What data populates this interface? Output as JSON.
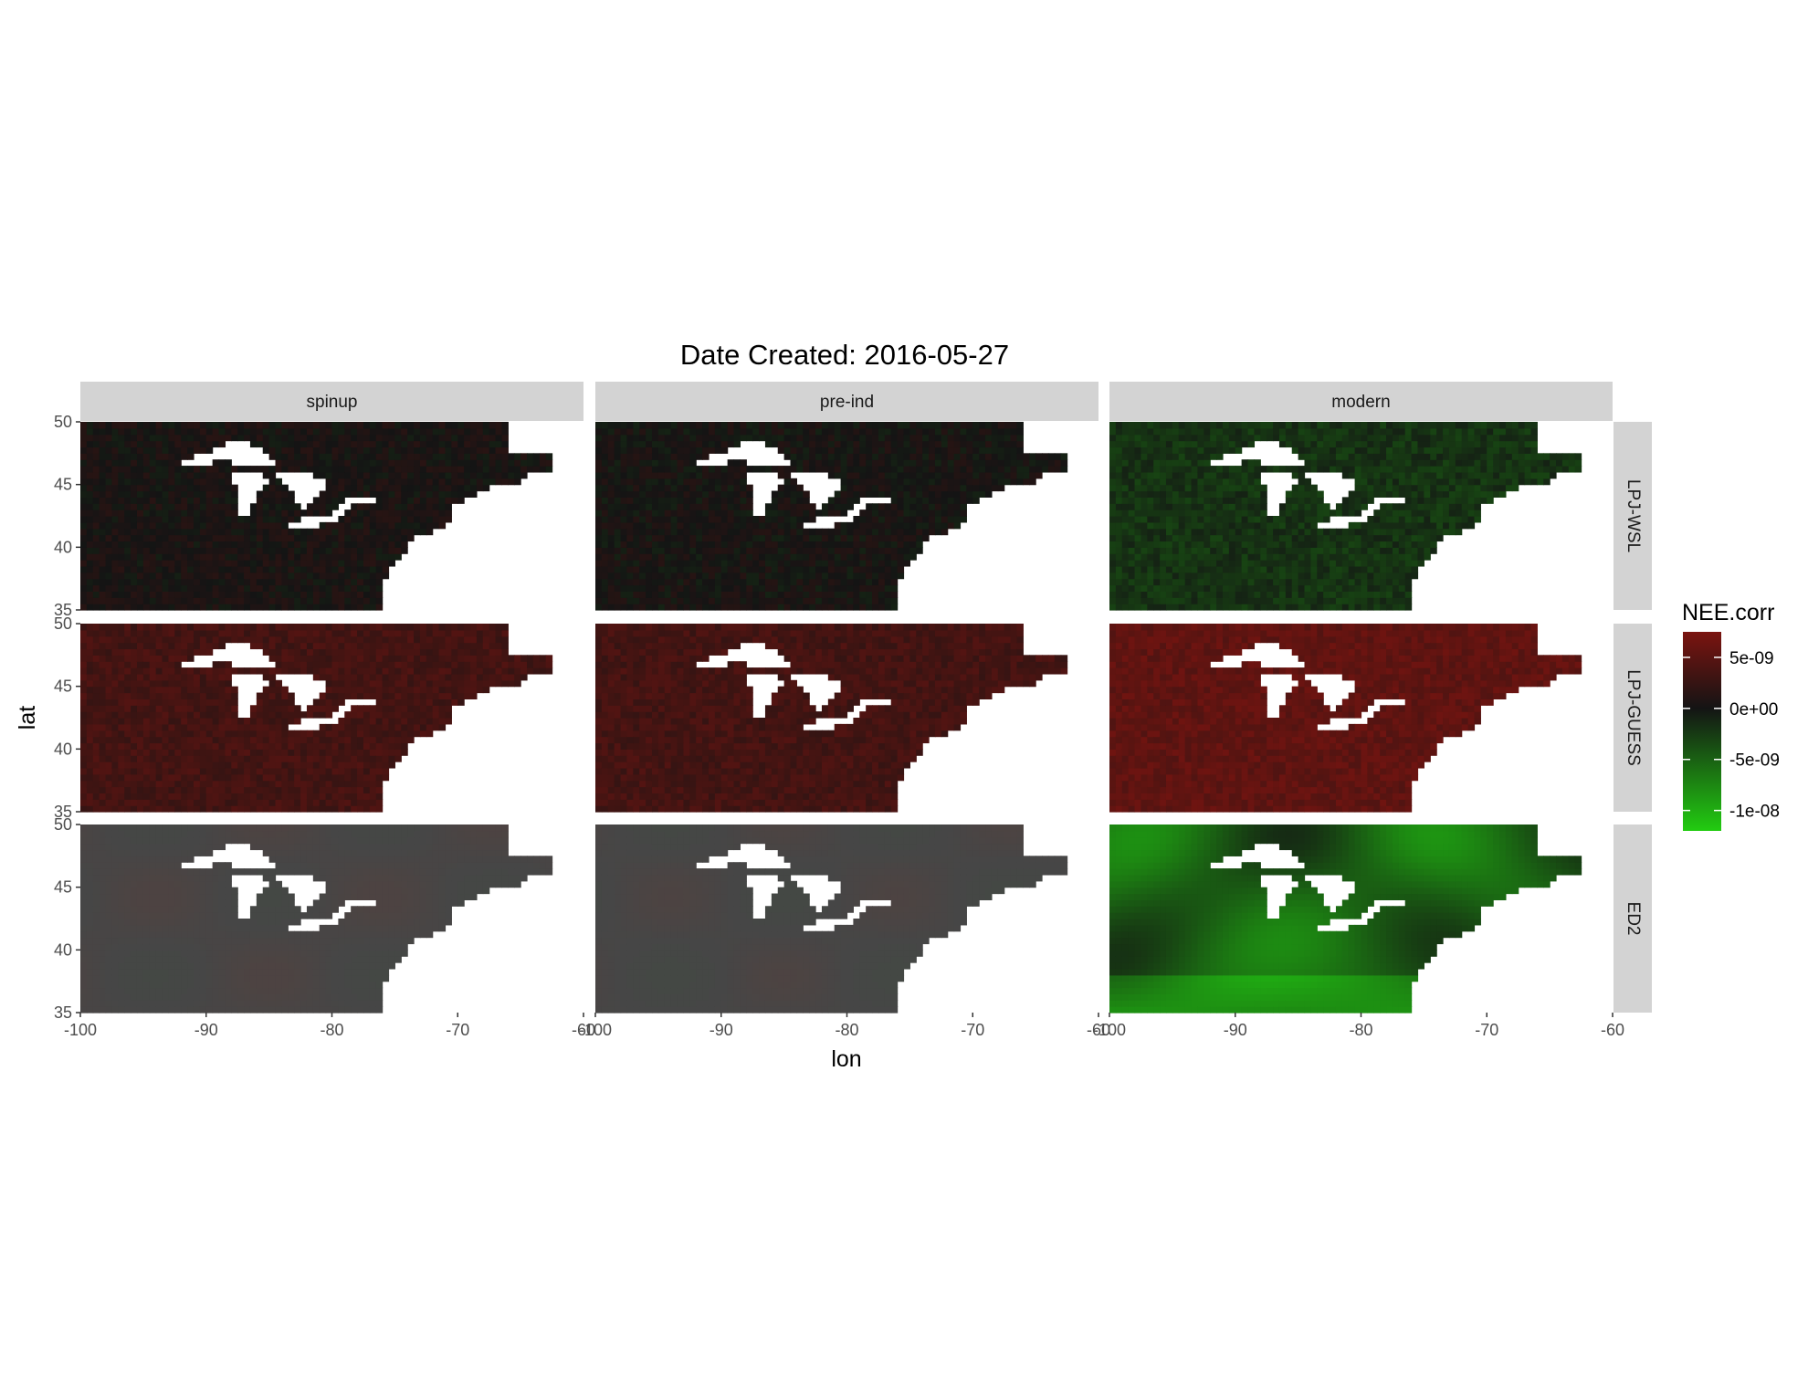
{
  "chart_data": {
    "type": "heatmap",
    "title": "Date Created: 2016-05-27",
    "xlabel": "lon",
    "ylabel": "lat",
    "xlim": [
      -100,
      -60
    ],
    "ylim": [
      35,
      50
    ],
    "x_ticks": [
      -100,
      -90,
      -80,
      -70,
      -60
    ],
    "y_ticks": [
      35,
      40,
      45,
      50
    ],
    "columns": [
      "spinup",
      "pre-ind",
      "modern"
    ],
    "rows": [
      "LPJ-WSL",
      "LPJ-GUESS",
      "ED2"
    ],
    "legend": {
      "title": "NEE.corr",
      "position": "right",
      "breaks": [
        5e-09,
        0,
        -5e-09,
        -1e-08
      ],
      "labels": [
        "5e-09",
        "0e+00",
        "-5e-09",
        "-1e-08"
      ],
      "limits": [
        -1.2e-08,
        7.5e-09
      ],
      "colors": {
        "high": "#7b1410",
        "mid": "#141414",
        "low": "#22cc11"
      }
    },
    "panels": [
      {
        "row": "LPJ-WSL",
        "column": "spinup",
        "mean_value": 4e-10,
        "pattern": "dark mixed, slight red/green noise"
      },
      {
        "row": "LPJ-WSL",
        "column": "pre-ind",
        "mean_value": 2e-10,
        "pattern": "dark mixed, slight red/green noise"
      },
      {
        "row": "LPJ-WSL",
        "column": "modern",
        "mean_value": -2e-09,
        "pattern": "dark green"
      },
      {
        "row": "LPJ-GUESS",
        "column": "spinup",
        "mean_value": 3.5e-09,
        "pattern": "dark red"
      },
      {
        "row": "LPJ-GUESS",
        "column": "pre-ind",
        "mean_value": 3.5e-09,
        "pattern": "dark red"
      },
      {
        "row": "LPJ-GUESS",
        "column": "modern",
        "mean_value": 5.5e-09,
        "pattern": "red"
      },
      {
        "row": "ED2",
        "column": "spinup",
        "mean_value": 2e-10,
        "pattern": "smooth grey with site points"
      },
      {
        "row": "ED2",
        "column": "pre-ind",
        "mean_value": 1e-10,
        "pattern": "smooth grey with site points"
      },
      {
        "row": "ED2",
        "column": "modern",
        "mean_value": -5e-09,
        "pattern": "smooth green with site points"
      }
    ],
    "grid": false,
    "panel_background": "#ffffff",
    "strip_fill": "#d3d3d3"
  }
}
